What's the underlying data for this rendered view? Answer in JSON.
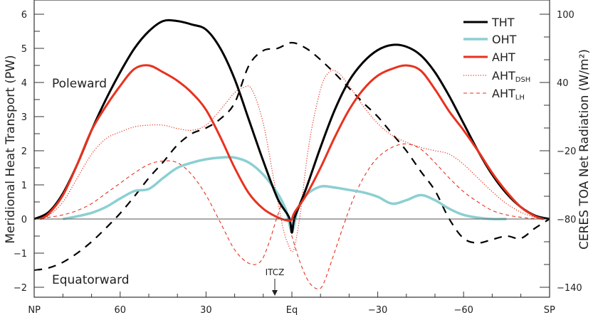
{
  "chart_data": {
    "type": "line",
    "title": "",
    "xlabel": "",
    "ylabel": "Meridional Heat Transport (PW)",
    "ylabel_right": "CERES TOA Net Radiation (W/m²)",
    "ylim": [
      -2.25,
      6.4
    ],
    "ylim_right": [
      -140,
      100
    ],
    "x_ticks": [
      {
        "lat": 90,
        "label": "NP"
      },
      {
        "lat": 60,
        "label": "60"
      },
      {
        "lat": 30,
        "label": "30"
      },
      {
        "lat": 0,
        "label": "Eq"
      },
      {
        "lat": -30,
        "label": "−30"
      },
      {
        "lat": -60,
        "label": "−60"
      },
      {
        "lat": -90,
        "label": "SP"
      }
    ],
    "y_ticks_left": [
      "6",
      "5",
      "4",
      "3",
      "2",
      "1",
      "0",
      "−1",
      "−2"
    ],
    "y_ticks_right": [
      "100",
      "40",
      "−20",
      "−80",
      "−140"
    ],
    "annotations": {
      "poleward": "Poleward",
      "equatorward": "Equatorward",
      "itcz": "ITCZ"
    },
    "itcz_lat": 6,
    "legend": [
      {
        "name": "THT",
        "sub": "",
        "color": "#000000",
        "style": "solid",
        "width": 3
      },
      {
        "name": "OHT",
        "sub": "",
        "color": "#8ccfd2",
        "style": "solid",
        "width": 3.5
      },
      {
        "name": "AHT",
        "sub": "",
        "color": "#e8321e",
        "style": "solid",
        "width": 3
      },
      {
        "name": "AHT",
        "sub": "DSH",
        "color": "#e8321e",
        "style": "dotted",
        "width": 1.2
      },
      {
        "name": "AHT",
        "sub": "LH",
        "color": "#e8321e",
        "style": "dashed",
        "width": 1.2
      }
    ],
    "series": [
      {
        "name": "THT",
        "axis": "left",
        "lat": [
          90,
          85,
          80,
          75,
          70,
          65,
          60,
          55,
          50,
          45,
          40,
          35,
          30,
          25,
          20,
          15,
          10,
          5,
          1,
          0,
          -1,
          -5,
          -10,
          -15,
          -20,
          -25,
          -30,
          -35,
          -40,
          -45,
          -50,
          -55,
          -60,
          -65,
          -70,
          -75,
          -80,
          -85,
          -90
        ],
        "values": [
          0,
          0.2,
          0.75,
          1.6,
          2.6,
          3.5,
          4.3,
          5.0,
          5.5,
          5.8,
          5.8,
          5.7,
          5.55,
          5.0,
          4.1,
          2.9,
          1.7,
          0.6,
          0.05,
          -0.4,
          0.05,
          0.9,
          2.1,
          3.2,
          4.05,
          4.6,
          4.95,
          5.1,
          5.05,
          4.8,
          4.3,
          3.6,
          2.8,
          2.0,
          1.3,
          0.75,
          0.35,
          0.1,
          0
        ]
      },
      {
        "name": "OHT",
        "axis": "left",
        "lat": [
          80,
          75,
          70,
          65,
          60,
          55,
          50,
          45,
          40,
          35,
          30,
          25,
          20,
          15,
          10,
          5,
          2,
          0,
          -2,
          -5,
          -10,
          -15,
          -20,
          -25,
          -30,
          -35,
          -40,
          -45,
          -50,
          -55,
          -60,
          -65,
          -70,
          -75
        ],
        "values": [
          0,
          0.08,
          0.18,
          0.35,
          0.6,
          0.82,
          0.88,
          1.2,
          1.5,
          1.65,
          1.75,
          1.8,
          1.8,
          1.65,
          1.3,
          0.75,
          0.25,
          -0.35,
          0.25,
          0.7,
          0.95,
          0.92,
          0.85,
          0.78,
          0.65,
          0.45,
          0.55,
          0.7,
          0.55,
          0.3,
          0.12,
          0.04,
          0.0,
          0.0
        ]
      },
      {
        "name": "AHT",
        "axis": "left",
        "lat": [
          88,
          85,
          80,
          75,
          70,
          65,
          60,
          55,
          50,
          45,
          40,
          35,
          30,
          25,
          20,
          15,
          10,
          5,
          1,
          0,
          -1,
          -5,
          -10,
          -15,
          -20,
          -25,
          -30,
          -35,
          -40,
          -45,
          -50,
          -55,
          -60,
          -65,
          -70,
          -75,
          -80,
          -85,
          -88
        ],
        "values": [
          0,
          0.15,
          0.7,
          1.6,
          2.6,
          3.3,
          3.9,
          4.4,
          4.5,
          4.3,
          4.05,
          3.7,
          3.2,
          2.4,
          1.5,
          0.75,
          0.3,
          0.05,
          -0.05,
          0,
          0.2,
          0.7,
          1.5,
          2.4,
          3.2,
          3.8,
          4.2,
          4.4,
          4.5,
          4.35,
          3.8,
          3.15,
          2.6,
          2.0,
          1.35,
          0.8,
          0.35,
          0.08,
          0
        ]
      },
      {
        "name": "AHT_DSH",
        "axis": "left",
        "lat": [
          88,
          85,
          80,
          75,
          70,
          65,
          60,
          55,
          50,
          45,
          40,
          35,
          30,
          25,
          20,
          17,
          14,
          10,
          6,
          3,
          1,
          0,
          -1,
          -3,
          -6,
          -10,
          -13,
          -16,
          -20,
          -25,
          -30,
          -35,
          -40,
          -45,
          -50,
          -55,
          -60,
          -65,
          -70,
          -75,
          -80,
          -85,
          -88
        ],
        "values": [
          0,
          0.1,
          0.5,
          1.2,
          1.9,
          2.35,
          2.55,
          2.7,
          2.75,
          2.75,
          2.65,
          2.6,
          2.75,
          3.2,
          3.7,
          3.85,
          3.8,
          2.8,
          1.0,
          -0.3,
          -0.8,
          -0.95,
          -0.8,
          0.2,
          2.2,
          3.8,
          4.3,
          4.3,
          3.9,
          3.3,
          2.8,
          2.45,
          2.25,
          2.1,
          2.0,
          1.9,
          1.6,
          1.2,
          0.8,
          0.45,
          0.2,
          0.05,
          0
        ]
      },
      {
        "name": "AHT_LH",
        "axis": "left",
        "lat": [
          90,
          85,
          80,
          75,
          70,
          65,
          60,
          55,
          50,
          45,
          40,
          35,
          30,
          25,
          20,
          15,
          11,
          8,
          5,
          3,
          0,
          -3,
          -6,
          -9,
          -11,
          -14,
          -18,
          -22,
          -26,
          -30,
          -35,
          -40,
          -45,
          -50,
          -55,
          -60,
          -65,
          -70,
          -75,
          -80,
          -85,
          -90
        ],
        "values": [
          0,
          0.05,
          0.12,
          0.25,
          0.45,
          0.75,
          1.05,
          1.35,
          1.6,
          1.7,
          1.65,
          1.3,
          0.7,
          -0.1,
          -0.9,
          -1.3,
          -1.25,
          -0.7,
          0.1,
          0.4,
          -0.5,
          -1.3,
          -1.85,
          -2.05,
          -1.9,
          -1.2,
          -0.2,
          0.7,
          1.35,
          1.8,
          2.1,
          2.2,
          2.05,
          1.65,
          1.2,
          0.8,
          0.5,
          0.25,
          0.12,
          0.05,
          0.01,
          0
        ]
      },
      {
        "name": "CERES TOA Net Radiation",
        "axis": "right",
        "lat": [
          90,
          85,
          80,
          75,
          70,
          65,
          60,
          55,
          50,
          45,
          40,
          35,
          30,
          25,
          20,
          15,
          10,
          5,
          0,
          -5,
          -10,
          -15,
          -20,
          -25,
          -30,
          -35,
          -40,
          -45,
          -50,
          -55,
          -60,
          -65,
          -70,
          -75,
          -80,
          -85,
          -90
        ],
        "values": [
          -125,
          -123,
          -118,
          -110,
          -100,
          -88,
          -75,
          -60,
          -44,
          -30,
          -15,
          -5,
          0,
          8,
          22,
          55,
          68,
          70,
          75,
          70,
          60,
          48,
          35,
          22,
          10,
          -5,
          -20,
          -38,
          -55,
          -80,
          -97,
          -101,
          -98,
          -95,
          -97,
          -88,
          -80
        ]
      }
    ]
  }
}
